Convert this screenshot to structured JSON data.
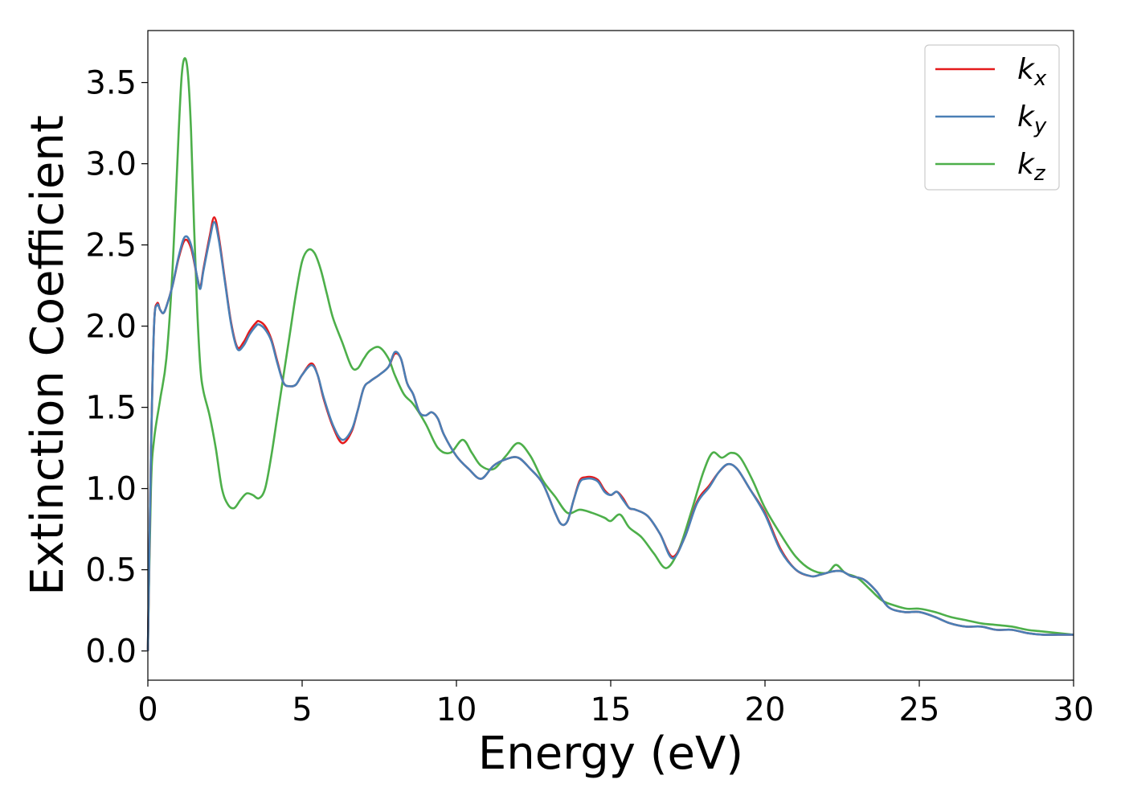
{
  "chart_data": {
    "type": "line",
    "xlabel": "Energy (eV)",
    "ylabel": "Extinction Coefficient",
    "xlim": [
      0,
      30
    ],
    "ylim": [
      -0.18,
      3.82
    ],
    "xticks": [
      0,
      5,
      10,
      15,
      20,
      25,
      30
    ],
    "xtick_labels": [
      "0",
      "5",
      "10",
      "15",
      "20",
      "25",
      "30"
    ],
    "yticks": [
      0.0,
      0.5,
      1.0,
      1.5,
      2.0,
      2.5,
      3.0,
      3.5
    ],
    "ytick_labels": [
      "0.0",
      "0.5",
      "1.0",
      "1.5",
      "2.0",
      "2.5",
      "3.0",
      "3.5"
    ],
    "grid": false,
    "legend_position": "top-right",
    "series": [
      {
        "name": "k_x",
        "legend_main": "k",
        "legend_sub": "x",
        "color": "#e41a1c",
        "x": [
          0,
          0.1,
          0.2,
          0.3,
          0.4,
          0.5,
          0.6,
          0.8,
          1.0,
          1.2,
          1.4,
          1.6,
          1.7,
          1.8,
          2.0,
          2.15,
          2.3,
          2.5,
          2.7,
          2.9,
          3.1,
          3.3,
          3.5,
          3.6,
          3.8,
          4.0,
          4.2,
          4.4,
          4.6,
          4.8,
          5.0,
          5.3,
          5.5,
          5.7,
          6.0,
          6.3,
          6.6,
          6.8,
          7.0,
          7.2,
          7.5,
          7.8,
          8.0,
          8.2,
          8.4,
          8.6,
          8.8,
          9.0,
          9.2,
          9.4,
          9.6,
          10.0,
          10.4,
          10.8,
          11.2,
          11.6,
          12.0,
          12.4,
          12.8,
          13.2,
          13.4,
          13.6,
          13.8,
          14.0,
          14.2,
          14.4,
          14.6,
          14.8,
          15.0,
          15.2,
          15.4,
          15.6,
          15.8,
          16.2,
          16.6,
          17.0,
          17.4,
          17.8,
          18.2,
          18.5,
          18.8,
          19.1,
          19.5,
          20.0,
          20.5,
          21.0,
          21.5,
          21.8,
          22.2,
          22.5,
          22.8,
          23.2,
          23.6,
          24.0,
          24.5,
          25.0,
          25.5,
          26.0,
          26.5,
          27.0,
          27.5,
          28.0,
          28.5,
          29.0,
          29.5,
          30.0
        ],
        "y": [
          0.0,
          1.2,
          2.0,
          2.14,
          2.1,
          2.08,
          2.12,
          2.25,
          2.42,
          2.53,
          2.48,
          2.3,
          2.24,
          2.35,
          2.55,
          2.67,
          2.55,
          2.28,
          2.02,
          1.87,
          1.9,
          1.97,
          2.02,
          2.03,
          2.0,
          1.92,
          1.78,
          1.65,
          1.63,
          1.64,
          1.7,
          1.77,
          1.7,
          1.55,
          1.38,
          1.28,
          1.35,
          1.48,
          1.62,
          1.66,
          1.7,
          1.75,
          1.83,
          1.8,
          1.65,
          1.58,
          1.47,
          1.45,
          1.47,
          1.43,
          1.33,
          1.2,
          1.12,
          1.06,
          1.14,
          1.18,
          1.19,
          1.12,
          1.03,
          0.85,
          0.78,
          0.8,
          0.93,
          1.05,
          1.07,
          1.07,
          1.05,
          0.99,
          0.96,
          0.98,
          0.94,
          0.88,
          0.87,
          0.83,
          0.72,
          0.58,
          0.7,
          0.92,
          1.02,
          1.1,
          1.15,
          1.12,
          1.0,
          0.85,
          0.63,
          0.5,
          0.46,
          0.47,
          0.49,
          0.49,
          0.46,
          0.44,
          0.37,
          0.27,
          0.24,
          0.24,
          0.21,
          0.17,
          0.15,
          0.15,
          0.13,
          0.13,
          0.11,
          0.1,
          0.1,
          0.1
        ]
      },
      {
        "name": "k_y",
        "legend_main": "k",
        "legend_sub": "y",
        "color": "#4a7fb5",
        "x": [
          0,
          0.1,
          0.2,
          0.3,
          0.4,
          0.5,
          0.6,
          0.8,
          1.0,
          1.2,
          1.4,
          1.6,
          1.7,
          1.8,
          2.0,
          2.15,
          2.3,
          2.5,
          2.7,
          2.9,
          3.1,
          3.3,
          3.5,
          3.6,
          3.8,
          4.0,
          4.2,
          4.4,
          4.6,
          4.8,
          5.0,
          5.3,
          5.5,
          5.7,
          6.0,
          6.3,
          6.6,
          6.8,
          7.0,
          7.2,
          7.5,
          7.8,
          8.0,
          8.2,
          8.4,
          8.6,
          8.8,
          9.0,
          9.2,
          9.4,
          9.6,
          10.0,
          10.4,
          10.8,
          11.2,
          11.6,
          12.0,
          12.4,
          12.8,
          13.2,
          13.4,
          13.6,
          13.8,
          14.0,
          14.2,
          14.4,
          14.6,
          14.8,
          15.0,
          15.2,
          15.4,
          15.6,
          15.8,
          16.2,
          16.6,
          17.0,
          17.4,
          17.8,
          18.2,
          18.5,
          18.8,
          19.1,
          19.5,
          20.0,
          20.5,
          21.0,
          21.5,
          21.8,
          22.2,
          22.5,
          22.8,
          23.2,
          23.6,
          24.0,
          24.5,
          25.0,
          25.5,
          26.0,
          26.5,
          27.0,
          27.5,
          28.0,
          28.5,
          29.0,
          29.5,
          30.0
        ],
        "y": [
          0.0,
          1.2,
          2.0,
          2.13,
          2.1,
          2.08,
          2.12,
          2.25,
          2.43,
          2.55,
          2.5,
          2.3,
          2.23,
          2.34,
          2.53,
          2.64,
          2.53,
          2.27,
          2.01,
          1.86,
          1.88,
          1.95,
          2.0,
          2.01,
          1.98,
          1.91,
          1.77,
          1.65,
          1.63,
          1.64,
          1.7,
          1.76,
          1.7,
          1.56,
          1.39,
          1.3,
          1.36,
          1.48,
          1.62,
          1.66,
          1.7,
          1.75,
          1.84,
          1.8,
          1.65,
          1.58,
          1.47,
          1.45,
          1.47,
          1.43,
          1.33,
          1.2,
          1.12,
          1.06,
          1.14,
          1.18,
          1.19,
          1.12,
          1.03,
          0.85,
          0.78,
          0.8,
          0.93,
          1.04,
          1.06,
          1.06,
          1.04,
          0.98,
          0.96,
          0.98,
          0.93,
          0.88,
          0.87,
          0.83,
          0.72,
          0.57,
          0.7,
          0.91,
          1.01,
          1.1,
          1.15,
          1.12,
          1.0,
          0.84,
          0.62,
          0.5,
          0.46,
          0.47,
          0.49,
          0.49,
          0.46,
          0.44,
          0.37,
          0.27,
          0.24,
          0.24,
          0.21,
          0.17,
          0.15,
          0.15,
          0.13,
          0.13,
          0.11,
          0.1,
          0.1,
          0.1
        ]
      },
      {
        "name": "k_z",
        "legend_main": "k",
        "legend_sub": "z",
        "color": "#4daf4a",
        "x": [
          0,
          0.1,
          0.2,
          0.4,
          0.6,
          0.8,
          1.0,
          1.1,
          1.2,
          1.3,
          1.4,
          1.5,
          1.6,
          1.7,
          1.8,
          2.0,
          2.2,
          2.4,
          2.6,
          2.8,
          3.0,
          3.2,
          3.4,
          3.6,
          3.8,
          4.0,
          4.2,
          4.4,
          4.6,
          4.8,
          5.0,
          5.2,
          5.4,
          5.6,
          5.8,
          6.0,
          6.3,
          6.6,
          6.8,
          7.0,
          7.2,
          7.5,
          7.8,
          8.0,
          8.3,
          8.6,
          9.0,
          9.4,
          9.8,
          10.2,
          10.5,
          10.8,
          11.2,
          11.6,
          12.0,
          12.4,
          12.8,
          13.2,
          13.6,
          14.0,
          14.4,
          14.8,
          15.0,
          15.3,
          15.6,
          16.0,
          16.4,
          16.8,
          17.2,
          17.6,
          18.0,
          18.3,
          18.6,
          18.9,
          19.2,
          19.6,
          20.0,
          20.5,
          21.0,
          21.5,
          22.0,
          22.3,
          22.6,
          23.0,
          23.4,
          23.8,
          24.2,
          24.6,
          25.0,
          25.5,
          26.0,
          26.5,
          27.0,
          27.5,
          28.0,
          28.5,
          29.0,
          29.5,
          30.0
        ],
        "y": [
          0.0,
          1.0,
          1.3,
          1.55,
          1.8,
          2.35,
          3.2,
          3.55,
          3.65,
          3.55,
          3.2,
          2.6,
          2.1,
          1.75,
          1.6,
          1.45,
          1.25,
          1.0,
          0.9,
          0.88,
          0.93,
          0.97,
          0.96,
          0.94,
          1.0,
          1.2,
          1.45,
          1.7,
          1.95,
          2.2,
          2.4,
          2.47,
          2.45,
          2.35,
          2.2,
          2.05,
          1.9,
          1.75,
          1.74,
          1.8,
          1.85,
          1.87,
          1.8,
          1.7,
          1.58,
          1.52,
          1.4,
          1.25,
          1.22,
          1.3,
          1.22,
          1.14,
          1.12,
          1.2,
          1.28,
          1.2,
          1.05,
          0.95,
          0.85,
          0.87,
          0.85,
          0.82,
          0.8,
          0.84,
          0.76,
          0.7,
          0.6,
          0.51,
          0.62,
          0.85,
          1.1,
          1.22,
          1.19,
          1.22,
          1.19,
          1.05,
          0.88,
          0.72,
          0.58,
          0.5,
          0.48,
          0.53,
          0.48,
          0.45,
          0.38,
          0.31,
          0.28,
          0.26,
          0.26,
          0.24,
          0.21,
          0.19,
          0.17,
          0.16,
          0.15,
          0.13,
          0.12,
          0.11,
          0.1
        ]
      }
    ]
  }
}
